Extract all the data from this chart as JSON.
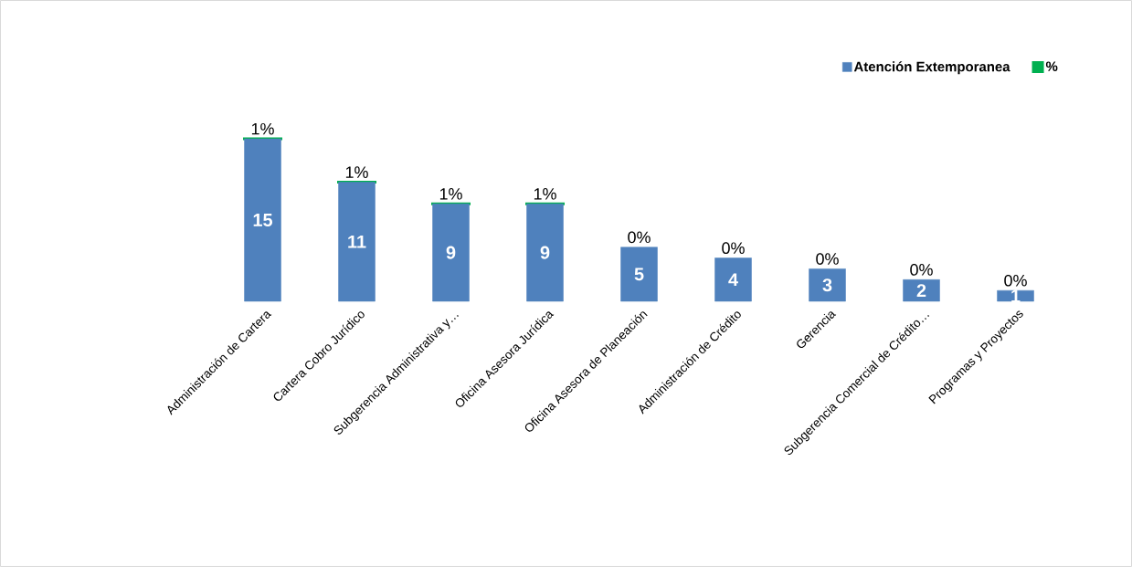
{
  "chart_data": {
    "type": "bar",
    "stacked": true,
    "legend": "top right",
    "categories": [
      "Administración de Cartera",
      "Cartera Cobro Jurídico",
      "Subgerencia Administrativa y…",
      "Oficina Asesora Jurídica",
      "Oficina Asesora de Planeación",
      "Administración de Crédito",
      "Gerencia",
      "Subgerencia Comercial de Crédito…",
      "Programas y Proyectos"
    ],
    "series": [
      {
        "name": "Atención Extemporanea",
        "color": "#4f81bd",
        "values": [
          15,
          11,
          9,
          9,
          5,
          4,
          3,
          2,
          1
        ],
        "data_labels": true
      },
      {
        "name": "%",
        "color": "#00b050",
        "values": [
          0.01,
          0.01,
          0.01,
          0.01,
          0,
          0,
          0,
          0,
          0
        ],
        "value_labels": [
          "1%",
          "1%",
          "1%",
          "1%",
          "0%",
          "0%",
          "0%",
          "0%",
          "0%"
        ]
      }
    ]
  }
}
